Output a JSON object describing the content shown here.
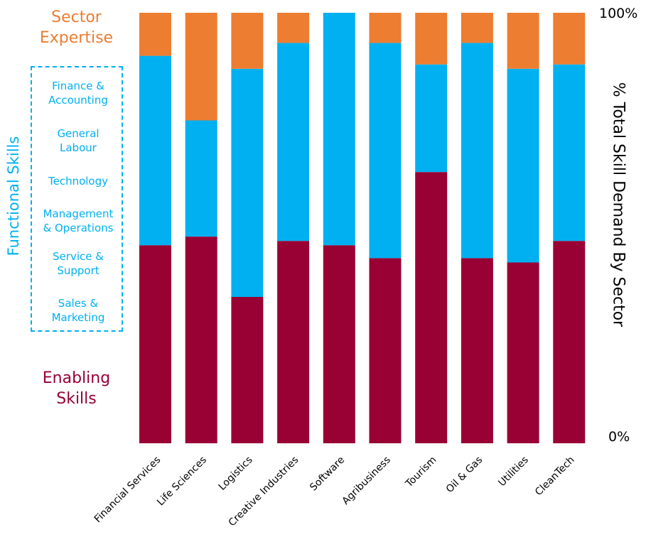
{
  "chart_data": {
    "type": "bar",
    "stacked": true,
    "categories": [
      "Financial Services",
      "Life Sciences",
      "Logistics",
      "Creative Industries",
      "Software",
      "Agribusiness",
      "Tourism",
      "Oil & Gas",
      "Utilities",
      "CleanTech"
    ],
    "series": [
      {
        "name": "Enabling Skills",
        "color": "#990033",
        "values": [
          46,
          48,
          34,
          47,
          46,
          43,
          63,
          43,
          42,
          47
        ]
      },
      {
        "name": "Functional Skills",
        "color": "#00B0F0",
        "values": [
          44,
          27,
          53,
          46,
          54,
          50,
          25,
          50,
          45,
          41
        ]
      },
      {
        "name": "Sector Expertise",
        "color": "#ED7D31",
        "values": [
          10,
          25,
          13,
          7,
          0,
          7,
          12,
          7,
          13,
          12
        ]
      }
    ],
    "ylabel": "% Total Skill Demand By Sector",
    "ytick_labels": [
      "0%",
      "100%"
    ],
    "ylim": [
      0,
      100
    ]
  },
  "legend": {
    "sector_expertise": "Sector\nExpertise",
    "functional_title": "Functional Skills",
    "functional_items": [
      "Finance &\nAccounting",
      "General\nLabour",
      "Technology",
      "Management\n& Operations",
      "Service &\nSupport",
      "Sales &\nMarketing"
    ],
    "enabling_skills": "Enabling\nSkills"
  }
}
